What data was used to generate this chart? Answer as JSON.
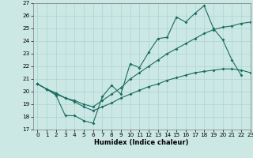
{
  "title": "",
  "xlabel": "Humidex (Indice chaleur)",
  "bg_color": "#cce8e5",
  "grid_color": "#aad4cf",
  "line_color": "#1a6b60",
  "xlim": [
    -0.5,
    23
  ],
  "ylim": [
    17,
    27
  ],
  "xticks": [
    0,
    1,
    2,
    3,
    4,
    5,
    6,
    7,
    8,
    9,
    10,
    11,
    12,
    13,
    14,
    15,
    16,
    17,
    18,
    19,
    20,
    21,
    22,
    23
  ],
  "yticks": [
    17,
    18,
    19,
    20,
    21,
    22,
    23,
    24,
    25,
    26,
    27
  ],
  "line1": {
    "x": [
      0,
      1,
      2,
      3,
      4,
      5,
      6,
      7,
      8,
      9,
      10,
      11,
      12,
      13,
      14,
      15,
      16,
      17,
      18,
      19,
      20,
      21,
      22
    ],
    "y": [
      20.6,
      20.2,
      19.7,
      18.1,
      18.1,
      17.7,
      17.5,
      19.6,
      20.5,
      19.8,
      22.2,
      21.9,
      23.1,
      24.2,
      24.3,
      25.9,
      25.5,
      26.2,
      26.8,
      25.0,
      24.1,
      22.5,
      21.3
    ]
  },
  "line2": {
    "x": [
      0,
      1,
      2,
      3,
      4,
      5,
      6,
      7,
      8,
      9,
      10,
      11,
      12,
      13,
      14,
      15,
      16,
      17,
      18,
      19,
      20,
      21,
      22,
      23
    ],
    "y": [
      20.6,
      20.2,
      19.8,
      19.5,
      19.3,
      19.0,
      18.8,
      19.3,
      19.8,
      20.3,
      21.0,
      21.5,
      22.0,
      22.5,
      23.0,
      23.4,
      23.8,
      24.2,
      24.6,
      24.9,
      25.1,
      25.2,
      25.4,
      25.5
    ]
  },
  "line3": {
    "x": [
      0,
      1,
      2,
      3,
      4,
      5,
      6,
      7,
      8,
      9,
      10,
      11,
      12,
      13,
      14,
      15,
      16,
      17,
      18,
      19,
      20,
      21,
      22,
      23
    ],
    "y": [
      20.6,
      20.2,
      19.9,
      19.5,
      19.2,
      18.8,
      18.5,
      18.8,
      19.1,
      19.5,
      19.8,
      20.1,
      20.4,
      20.6,
      20.9,
      21.1,
      21.3,
      21.5,
      21.6,
      21.7,
      21.8,
      21.8,
      21.7,
      21.5
    ]
  }
}
